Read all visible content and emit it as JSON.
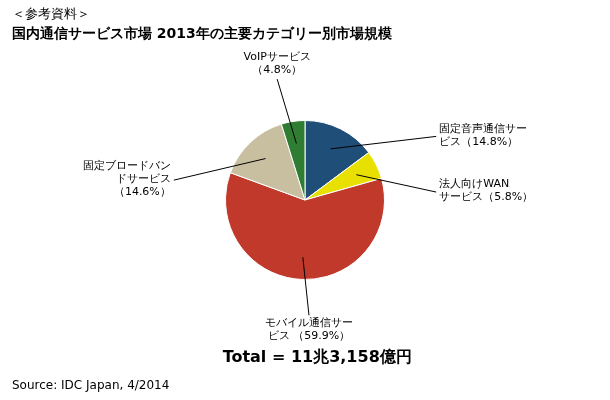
{
  "chart_data": {
    "type": "pie",
    "title": "＜参考資料＞",
    "subtitle": "国内通信サービス市場 2013年の主要カテゴリー別市場規模",
    "categories": [
      "固定音声通信サー\nビス（14.8%）",
      "法人向けWAN\nサービス（5.8%）",
      "モバイル通信サー\nビス （59.9%）",
      "固定ブロードバン\nドサービス\n（14.6%）",
      "VoIPサービス\n（4.8%）"
    ],
    "values": [
      14.8,
      5.8,
      59.9,
      14.6,
      4.8
    ],
    "colors": [
      "#1f4e79",
      "#e8e000",
      "#c0392b",
      "#c8bfa0",
      "#2e7d32"
    ],
    "annotations": [
      "Total = 11兆3,158億円",
      "Source: IDC Japan, 4/2014"
    ]
  }
}
